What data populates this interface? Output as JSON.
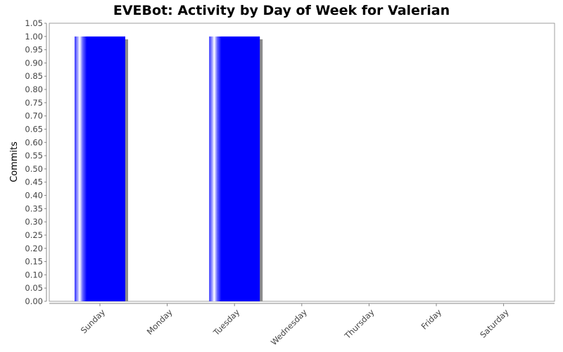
{
  "chart_data": {
    "type": "bar",
    "title": "EVEBot: Activity by Day of Week for Valerian",
    "xlabel": "",
    "ylabel": "Commits",
    "categories": [
      "Sunday",
      "Monday",
      "Tuesday",
      "Wednesday",
      "Thursday",
      "Friday",
      "Saturday"
    ],
    "values": [
      1,
      0,
      1,
      0,
      0,
      0,
      0
    ],
    "ylim": [
      0,
      1.05
    ],
    "yticks": [
      "0.00",
      "0.05",
      "0.10",
      "0.15",
      "0.20",
      "0.25",
      "0.30",
      "0.35",
      "0.40",
      "0.45",
      "0.50",
      "0.55",
      "0.60",
      "0.65",
      "0.70",
      "0.75",
      "0.80",
      "0.85",
      "0.90",
      "0.95",
      "1.00",
      "1.05"
    ],
    "grid": false,
    "bar_color": "#0000ff"
  }
}
